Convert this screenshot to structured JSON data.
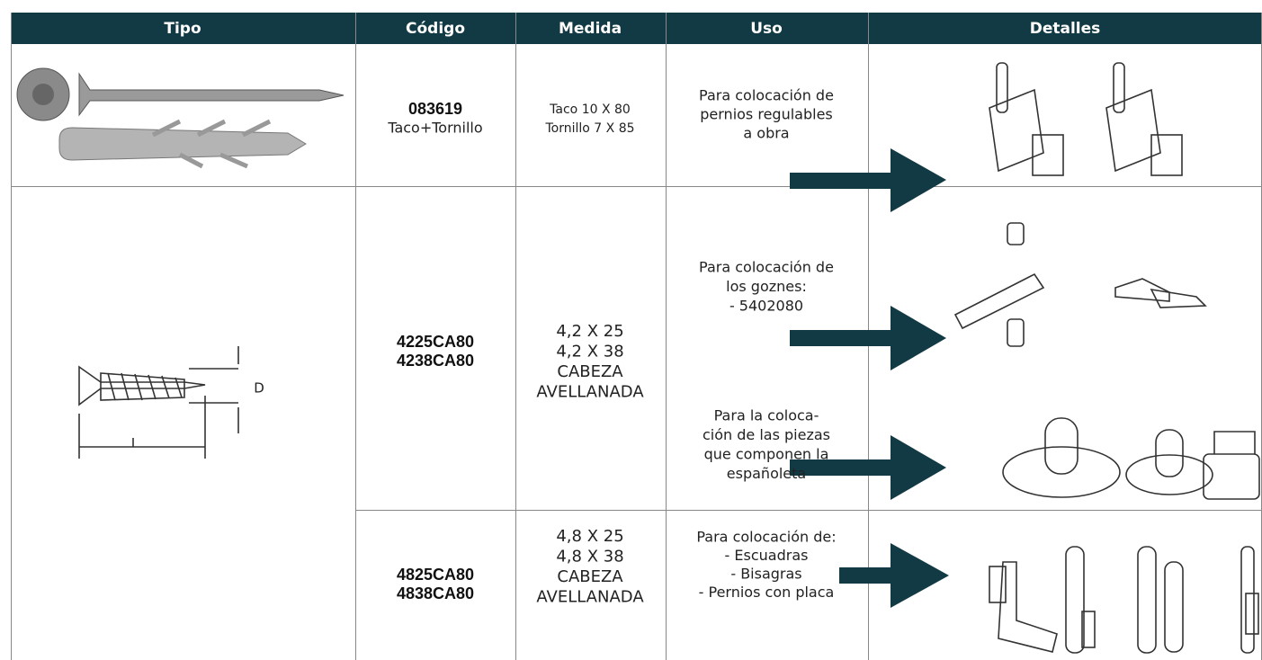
{
  "table": {
    "headers": [
      "Tipo",
      "Código",
      "Medida",
      "Uso",
      "Detalles"
    ],
    "rows": [
      {
        "codigo": [
          "083619",
          "Taco+Tornillo"
        ],
        "medida": [
          "Taco 10  X  80",
          "Tornillo 7  X  85"
        ],
        "uso": [
          [
            "Para colocación de",
            "pernios regulables",
            "a obra"
          ]
        ]
      },
      {
        "codigo": [
          "4225CA80",
          "4238CA80"
        ],
        "medida": [
          "4,2  X  25",
          "4,2 X  38",
          "CABEZA",
          "AVELLANADA"
        ],
        "uso": [
          [
            "Para colocación de",
            "los goznes:",
            "- 5402080"
          ],
          [
            "Para la coloca-",
            "ción de las piezas",
            "que componen la",
            "españoleta"
          ]
        ],
        "diagram_label": "D"
      },
      {
        "codigo": [
          "4825CA80",
          "4838CA80"
        ],
        "medida": [
          "4,8  X  25",
          "4,8  X  38",
          "CABEZA",
          "AVELLANADA"
        ],
        "uso": [
          [
            "Para colocación de:",
            "- Escuadras",
            "- Bisagras",
            "- Pernios con placa"
          ]
        ]
      }
    ]
  }
}
